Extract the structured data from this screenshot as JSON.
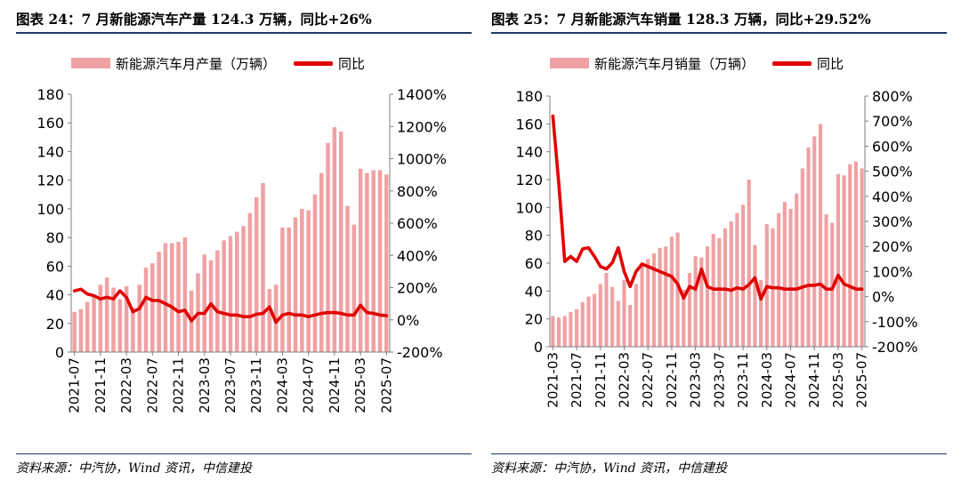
{
  "colors": {
    "bar": "#f0a1a3",
    "line": "#e00000",
    "rule": "#1f3864"
  },
  "panels": [
    {
      "title": "图表 24：7 月新能源汽车产量 124.3 万辆，同比+26%",
      "legend": {
        "bar_label": "新能源汽车月产量（万辆）",
        "line_label": "同比"
      },
      "source": "资料来源：中汽协，Wind 资讯，中信建投"
    },
    {
      "title": "图表 25：7 月新能源汽车销量 128.3 万辆，同比+29.52%",
      "legend": {
        "bar_label": "新能源汽车月销量（万辆）",
        "line_label": "同比"
      },
      "source": "资料来源：中汽协，Wind 资讯，中信建投"
    }
  ],
  "chart_data": [
    {
      "type": "bar+line",
      "x_tick_labels": [
        "2021-07",
        "2021-11",
        "2022-03",
        "2022-07",
        "2022-11",
        "2023-03",
        "2023-07",
        "2023-11",
        "2024-03",
        "2024-07",
        "2024-11",
        "2025-03",
        "2025-07"
      ],
      "categories": [
        "2021-07",
        "2021-08",
        "2021-09",
        "2021-10",
        "2021-11",
        "2021-12",
        "2022-01",
        "2022-02",
        "2022-03",
        "2022-04",
        "2022-05",
        "2022-06",
        "2022-07",
        "2022-08",
        "2022-09",
        "2022-10",
        "2022-11",
        "2022-12",
        "2023-01",
        "2023-02",
        "2023-03",
        "2023-04",
        "2023-05",
        "2023-06",
        "2023-07",
        "2023-08",
        "2023-09",
        "2023-10",
        "2023-11",
        "2023-12",
        "2024-01",
        "2024-02",
        "2024-03",
        "2024-04",
        "2024-05",
        "2024-06",
        "2024-07",
        "2024-08",
        "2024-09",
        "2024-10",
        "2024-11",
        "2024-12",
        "2025-01",
        "2025-02",
        "2025-03",
        "2025-04",
        "2025-05",
        "2025-06",
        "2025-07"
      ],
      "series": [
        {
          "name": "新能源汽车月产量（万辆）",
          "axis": "left",
          "kind": "bar",
          "values": [
            28,
            30,
            35,
            40,
            47,
            52,
            45,
            37,
            46,
            31,
            47,
            59,
            62,
            70,
            76,
            76,
            77,
            80,
            43,
            55,
            68,
            64,
            71,
            78,
            81,
            84,
            88,
            97,
            108,
            118,
            44,
            47,
            87,
            87,
            94,
            100,
            99,
            110,
            125,
            146,
            157,
            154,
            102,
            89,
            128,
            125,
            127,
            127,
            124
          ]
        },
        {
          "name": "同比",
          "axis": "right",
          "kind": "line",
          "values": [
            1.8,
            1.9,
            1.6,
            1.5,
            1.3,
            1.4,
            1.3,
            1.8,
            1.4,
            0.5,
            0.7,
            1.4,
            1.2,
            1.2,
            1.0,
            0.8,
            0.5,
            0.6,
            -0.06,
            0.4,
            0.4,
            1.0,
            0.5,
            0.4,
            0.3,
            0.3,
            0.2,
            0.2,
            0.35,
            0.4,
            0.8,
            -0.15,
            0.3,
            0.4,
            0.3,
            0.3,
            0.2,
            0.3,
            0.4,
            0.45,
            0.45,
            0.4,
            0.3,
            0.3,
            0.9,
            0.45,
            0.4,
            0.3,
            0.26
          ]
        }
      ],
      "y_left": {
        "min": 0,
        "max": 180,
        "step": 20
      },
      "y_right": {
        "min": -2,
        "max": 14,
        "step": 2,
        "tick_labels": [
          "-200%",
          "0%",
          "200%",
          "400%",
          "600%",
          "800%",
          "1000%",
          "1200%",
          "1400%"
        ]
      },
      "grid": false
    },
    {
      "type": "bar+line",
      "x_tick_labels": [
        "2021-03",
        "2021-07",
        "2021-11",
        "2022-03",
        "2022-07",
        "2022-11",
        "2023-03",
        "2023-07",
        "2023-11",
        "2024-03",
        "2024-07",
        "2024-11",
        "2025-03",
        "2025-07"
      ],
      "categories": [
        "2021-03",
        "2021-04",
        "2021-05",
        "2021-06",
        "2021-07",
        "2021-08",
        "2021-09",
        "2021-10",
        "2021-11",
        "2021-12",
        "2022-01",
        "2022-02",
        "2022-03",
        "2022-04",
        "2022-05",
        "2022-06",
        "2022-07",
        "2022-08",
        "2022-09",
        "2022-10",
        "2022-11",
        "2022-12",
        "2023-01",
        "2023-02",
        "2023-03",
        "2023-04",
        "2023-05",
        "2023-06",
        "2023-07",
        "2023-08",
        "2023-09",
        "2023-10",
        "2023-11",
        "2023-12",
        "2024-01",
        "2024-02",
        "2024-03",
        "2024-04",
        "2024-05",
        "2024-06",
        "2024-07",
        "2024-08",
        "2024-09",
        "2024-10",
        "2024-11",
        "2024-12",
        "2025-01",
        "2025-02",
        "2025-03",
        "2025-04",
        "2025-05",
        "2025-06",
        "2025-07"
      ],
      "series": [
        {
          "name": "新能源汽车月销量（万辆）",
          "axis": "left",
          "kind": "bar",
          "values": [
            22,
            21,
            22,
            25,
            27,
            32,
            36,
            38,
            45,
            53,
            43,
            33,
            48,
            30,
            45,
            60,
            63,
            67,
            71,
            72,
            79,
            82,
            41,
            53,
            65,
            64,
            72,
            81,
            78,
            85,
            90,
            96,
            102,
            120,
            73,
            48,
            88,
            85,
            96,
            104,
            99,
            110,
            128,
            143,
            151,
            160,
            95,
            89,
            124,
            123,
            131,
            133,
            128
          ]
        },
        {
          "name": "同比",
          "axis": "right",
          "kind": "line",
          "values": [
            7.2,
            4.5,
            1.4,
            1.6,
            1.4,
            1.9,
            1.95,
            1.6,
            1.2,
            1.1,
            1.35,
            1.95,
            1.0,
            0.4,
            1.0,
            1.3,
            1.2,
            1.1,
            1.0,
            0.9,
            0.8,
            0.5,
            -0.06,
            0.4,
            0.3,
            1.1,
            0.4,
            0.3,
            0.3,
            0.3,
            0.25,
            0.35,
            0.3,
            0.48,
            0.75,
            -0.1,
            0.4,
            0.35,
            0.35,
            0.3,
            0.3,
            0.3,
            0.38,
            0.45,
            0.45,
            0.5,
            0.3,
            0.3,
            0.85,
            0.5,
            0.4,
            0.3,
            0.3
          ]
        }
      ],
      "y_left": {
        "min": 0,
        "max": 180,
        "step": 20
      },
      "y_right": {
        "min": -2,
        "max": 8,
        "step": 1,
        "tick_labels": [
          "-200%",
          "-100%",
          "0%",
          "100%",
          "200%",
          "300%",
          "400%",
          "500%",
          "600%",
          "700%",
          "800%"
        ]
      },
      "grid": false
    }
  ]
}
